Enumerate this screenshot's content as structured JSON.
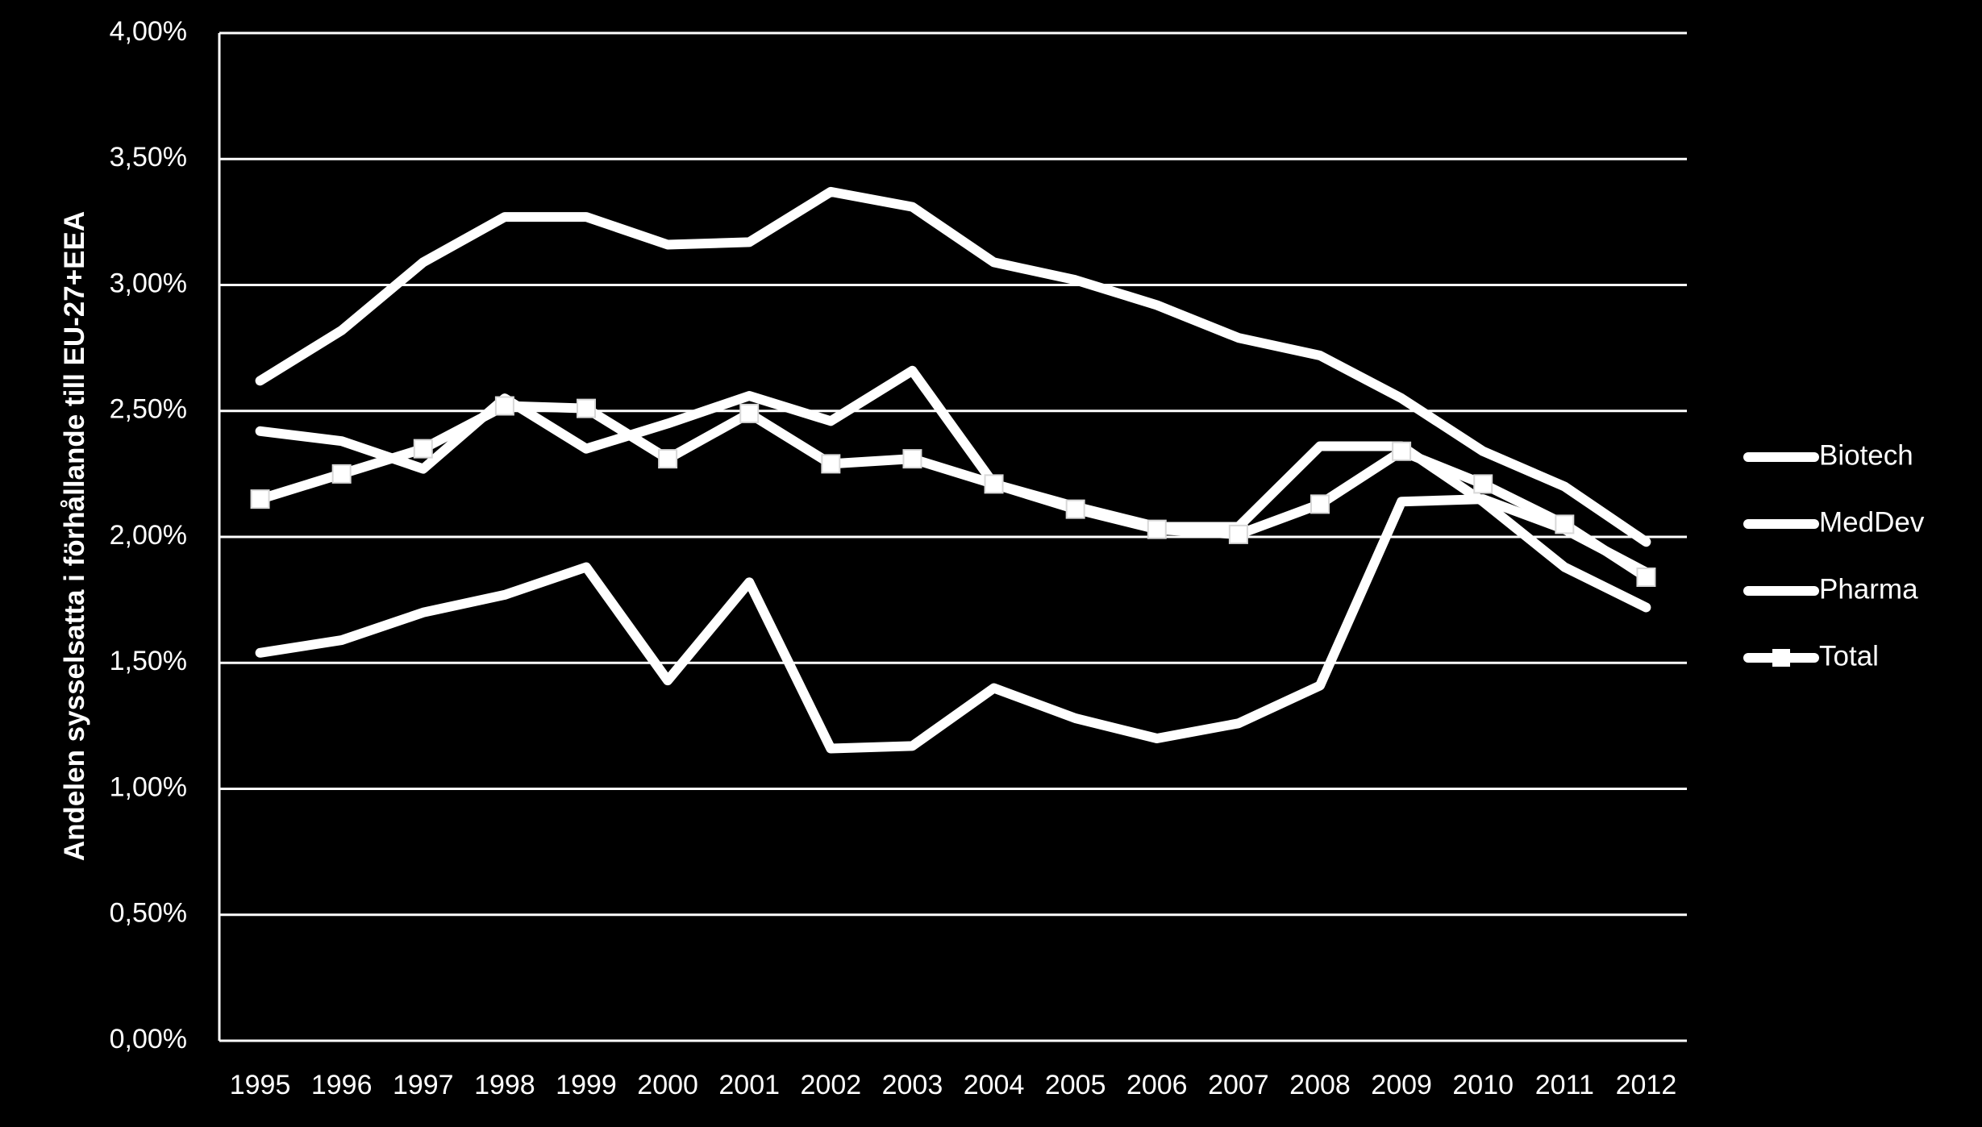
{
  "chart_data": {
    "type": "line",
    "title": "",
    "xlabel": "",
    "ylabel": "Andelen sysselsatta i förhållande till EU-27+EEA",
    "x": [
      "1995",
      "1996",
      "1997",
      "1998",
      "1999",
      "2000",
      "2001",
      "2002",
      "2003",
      "2004",
      "2005",
      "2006",
      "2007",
      "2008",
      "2009",
      "2010",
      "2011",
      "2012"
    ],
    "ylim": [
      0,
      0.04
    ],
    "yticks": [
      0,
      0.005,
      0.01,
      0.015,
      0.02,
      0.025,
      0.03,
      0.035,
      0.04
    ],
    "ytick_labels": [
      "0,00%",
      "0,50%",
      "1,00%",
      "1,50%",
      "2,00%",
      "2,50%",
      "3,00%",
      "3,50%",
      "4,00%"
    ],
    "grid": true,
    "legend_position": "right",
    "line_color": "#ffffff",
    "background_color": "#000000",
    "series": [
      {
        "name": "Biotech",
        "marker": "none",
        "values": [
          0.0262,
          0.0282,
          0.0309,
          0.0327,
          0.0327,
          0.0316,
          0.0317,
          0.0337,
          0.0331,
          0.0309,
          0.0302,
          0.0292,
          0.0279,
          0.0272,
          0.0255,
          0.0234,
          0.022,
          0.0198
        ]
      },
      {
        "name": "MedDev",
        "marker": "none",
        "values": [
          0.0242,
          0.0238,
          0.0227,
          0.0255,
          0.0235,
          0.0245,
          0.0256,
          0.0246,
          0.0266,
          0.0221,
          0.0212,
          0.0204,
          0.0204,
          0.0236,
          0.0236,
          0.0214,
          0.0188,
          0.0172
        ]
      },
      {
        "name": "Pharma",
        "marker": "none",
        "values": [
          0.0154,
          0.0159,
          0.017,
          0.0177,
          0.0188,
          0.0143,
          0.0182,
          0.0116,
          0.0117,
          0.014,
          0.0128,
          0.012,
          0.0126,
          0.0141,
          0.0214,
          0.0215,
          0.0203,
          0.0186
        ]
      },
      {
        "name": "Total",
        "marker": "square",
        "values": [
          0.0215,
          0.0225,
          0.0235,
          0.0252,
          0.0251,
          0.0231,
          0.0249,
          0.0229,
          0.0231,
          0.0221,
          0.0211,
          0.0203,
          0.0201,
          0.0213,
          0.0234,
          0.0221,
          0.0205,
          0.0184
        ]
      }
    ]
  }
}
